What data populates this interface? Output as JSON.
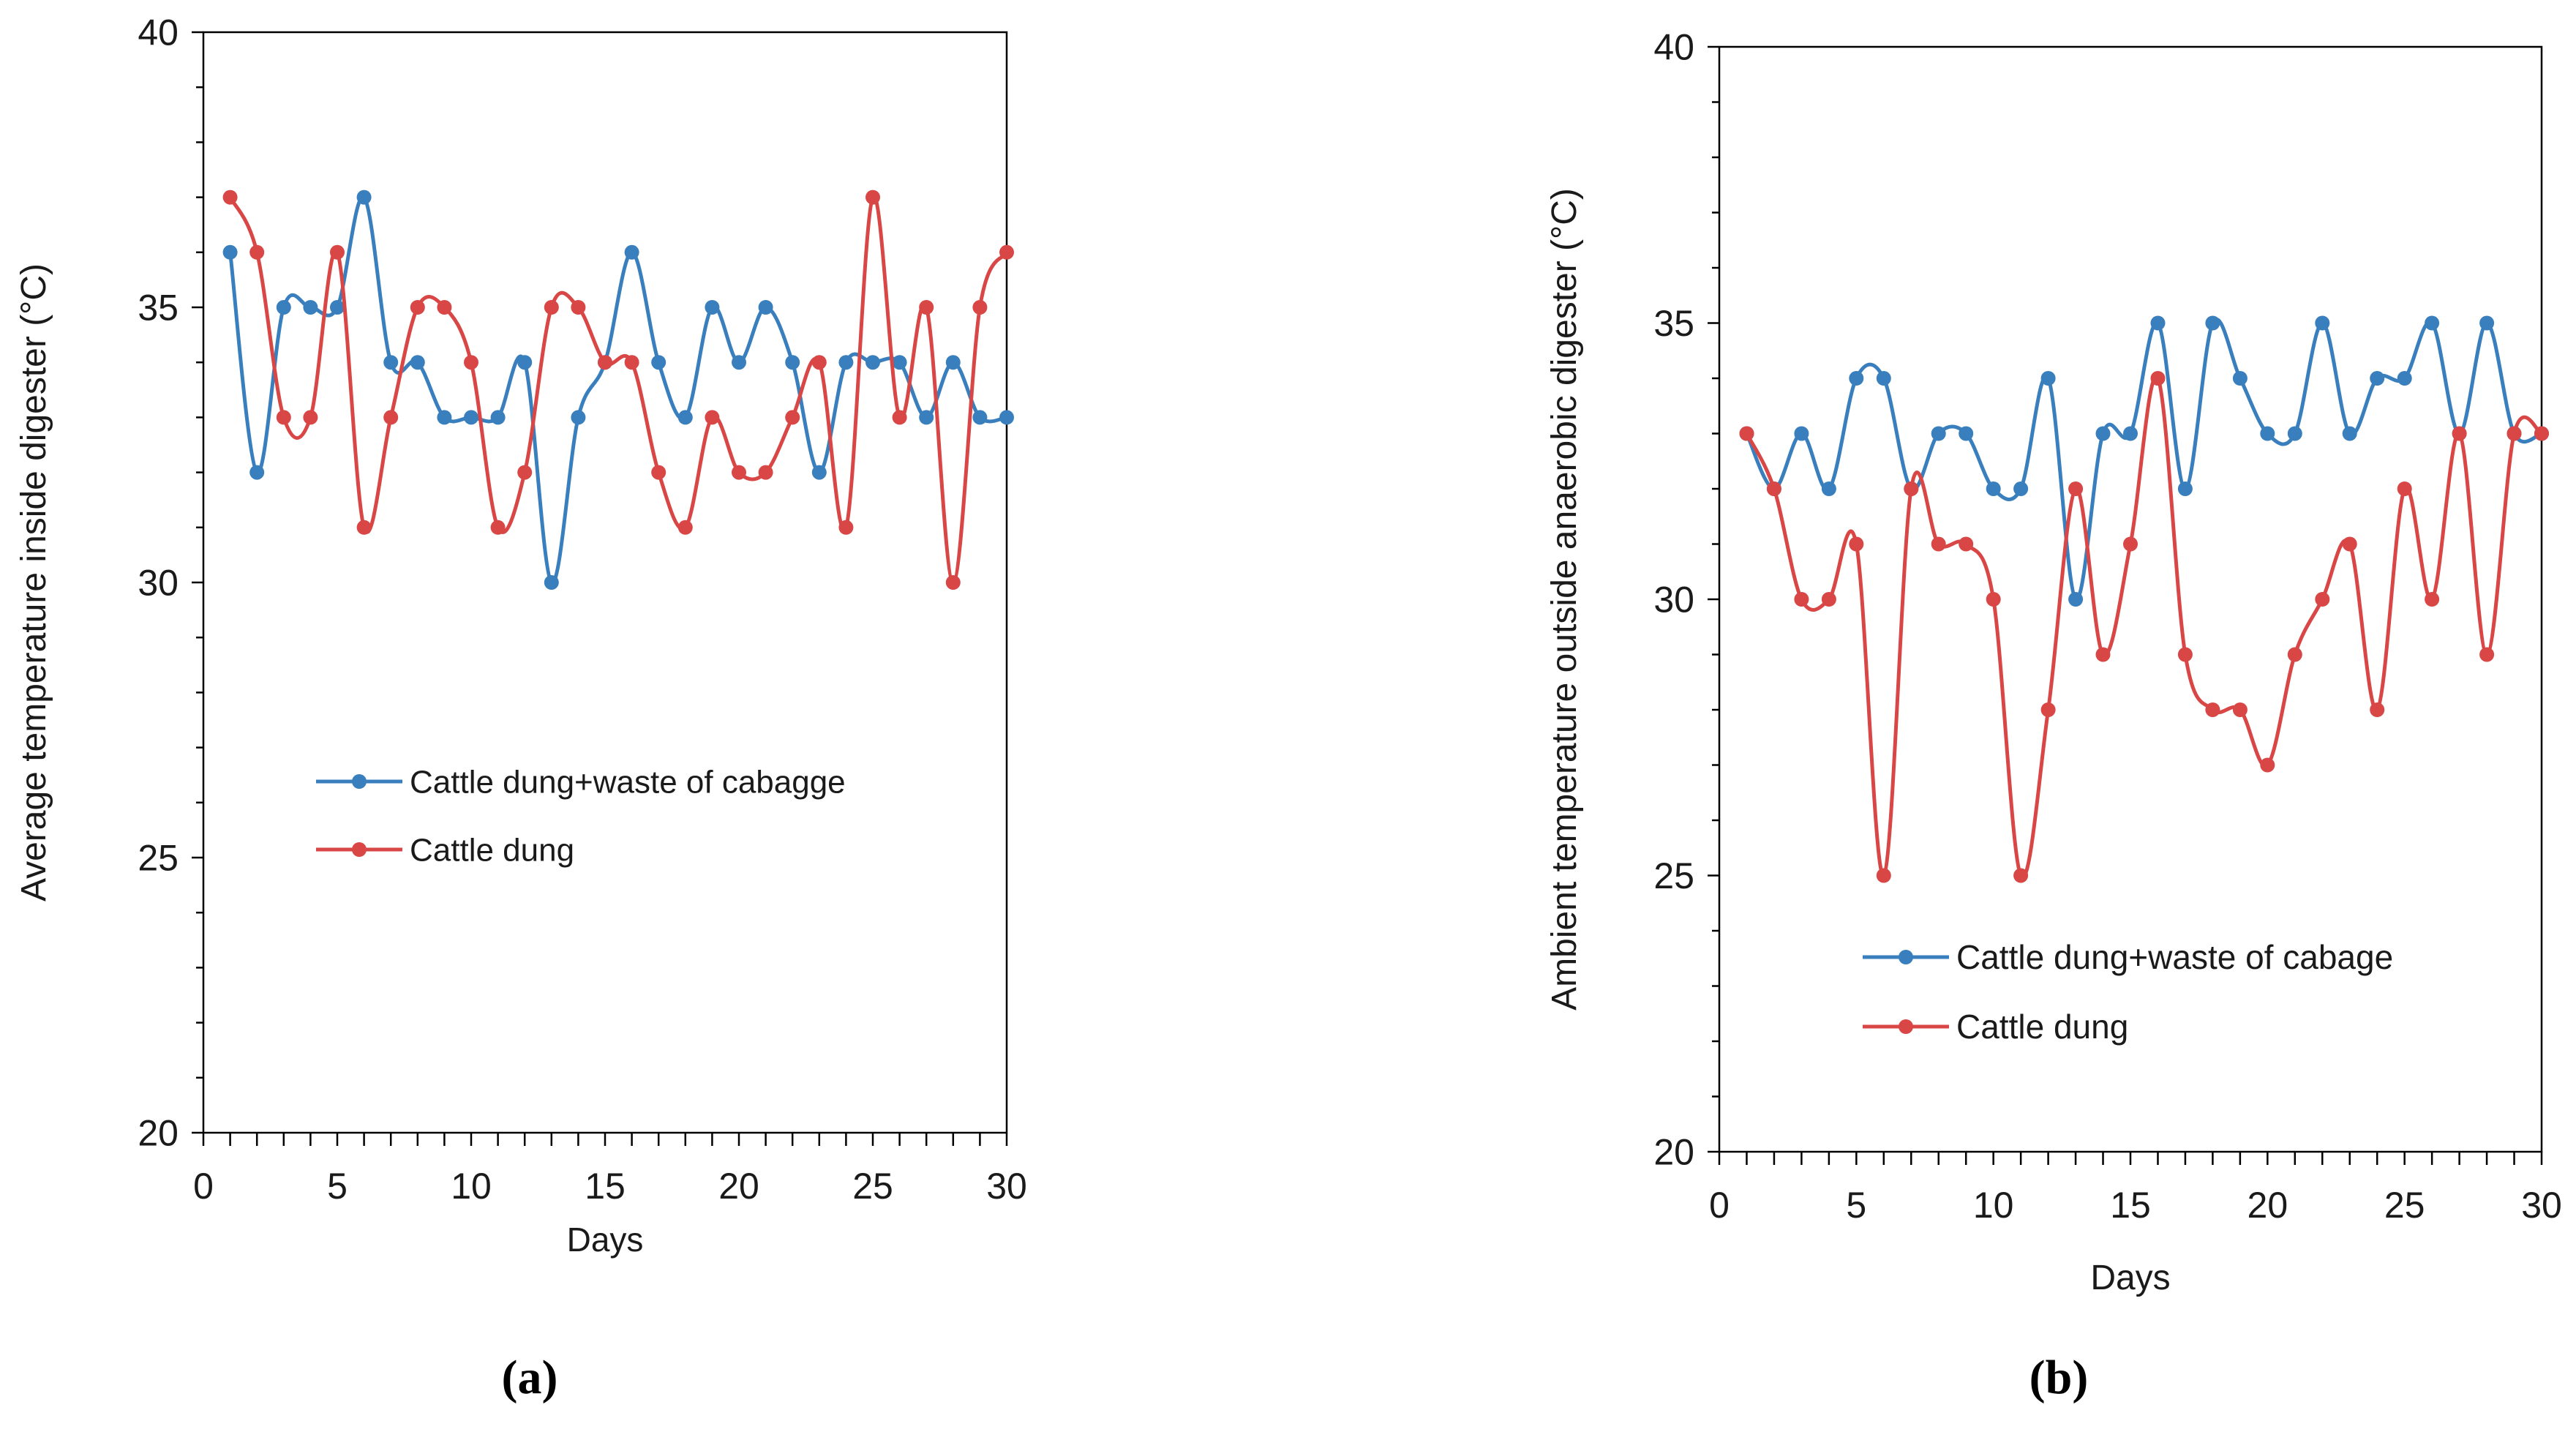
{
  "colors": {
    "series1": "#3a7fbd",
    "series2": "#d94646",
    "axis": "#000000"
  },
  "chart_data": [
    {
      "type": "line",
      "panel_label": "(a)",
      "xlabel": "Days",
      "ylabel": "Average temperature inside digester (°C)",
      "xlim": [
        0,
        30
      ],
      "ylim": [
        20,
        40
      ],
      "x_ticks": [
        0,
        5,
        10,
        15,
        20,
        25,
        30
      ],
      "y_ticks": [
        20,
        25,
        30,
        35,
        40
      ],
      "legend_position": "center-left",
      "x": [
        1,
        2,
        3,
        4,
        5,
        6,
        7,
        8,
        9,
        10,
        11,
        12,
        13,
        14,
        15,
        16,
        17,
        18,
        19,
        20,
        21,
        22,
        23,
        24,
        25,
        26,
        27,
        28,
        29,
        30
      ],
      "series": [
        {
          "name": "Cattle  dung+waste of cabagge",
          "color": "#3a7fbd",
          "values": [
            36,
            32,
            35,
            35,
            35,
            37,
            34,
            34,
            33,
            33,
            33,
            34,
            30,
            33,
            34,
            36,
            34,
            33,
            35,
            34,
            35,
            34,
            32,
            34,
            34,
            34,
            33,
            34,
            33,
            33
          ]
        },
        {
          "name": "Cattle dung",
          "color": "#d94646",
          "values": [
            37,
            36,
            33,
            33,
            36,
            31,
            33,
            35,
            35,
            34,
            31,
            32,
            35,
            35,
            34,
            34,
            32,
            31,
            33,
            32,
            32,
            33,
            34,
            31,
            37,
            33,
            35,
            30,
            35,
            36
          ]
        }
      ]
    },
    {
      "type": "line",
      "panel_label": "(b)",
      "xlabel": "Days",
      "ylabel": "Ambient temperature outside anaerobic digester (°C)",
      "xlim": [
        0,
        30
      ],
      "ylim": [
        20,
        40
      ],
      "x_ticks": [
        0,
        5,
        10,
        15,
        20,
        25,
        30
      ],
      "y_ticks": [
        20,
        25,
        30,
        35,
        40
      ],
      "legend_position": "lower-left",
      "x": [
        1,
        2,
        3,
        4,
        5,
        6,
        7,
        8,
        9,
        10,
        11,
        12,
        13,
        14,
        15,
        16,
        17,
        18,
        19,
        20,
        21,
        22,
        23,
        24,
        25,
        26,
        27,
        28,
        29,
        30
      ],
      "series": [
        {
          "name": "Cattle dung+waste of cabage",
          "color": "#3a7fbd",
          "values": [
            33,
            32,
            33,
            32,
            34,
            34,
            32,
            33,
            33,
            32,
            32,
            34,
            30,
            33,
            33,
            35,
            32,
            35,
            34,
            33,
            33,
            35,
            33,
            34,
            34,
            35,
            33,
            35,
            33,
            33
          ]
        },
        {
          "name": "Cattle dung",
          "color": "#d94646",
          "values": [
            33,
            32,
            30,
            30,
            31,
            25,
            32,
            31,
            31,
            30,
            25,
            28,
            32,
            29,
            31,
            34,
            29,
            28,
            28,
            27,
            29,
            30,
            31,
            28,
            32,
            30,
            33,
            29,
            33,
            33
          ]
        }
      ]
    }
  ]
}
